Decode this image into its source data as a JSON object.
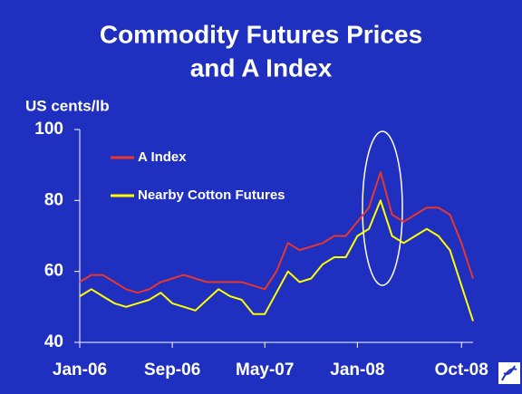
{
  "chart_data": {
    "type": "line",
    "title": "Commodity Futures Prices",
    "subtitle": "and A Index",
    "y_label": "US cents/lb",
    "x": [
      "2006-01",
      "2006-02",
      "2006-03",
      "2006-04",
      "2006-05",
      "2006-06",
      "2006-07",
      "2006-08",
      "2006-09",
      "2006-10",
      "2006-11",
      "2006-12",
      "2007-01",
      "2007-02",
      "2007-03",
      "2007-04",
      "2007-05",
      "2007-06",
      "2007-07",
      "2007-08",
      "2007-09",
      "2007-10",
      "2007-11",
      "2007-12",
      "2008-01",
      "2008-02",
      "2008-03",
      "2008-04",
      "2008-05",
      "2008-06",
      "2008-07",
      "2008-08",
      "2008-09",
      "2008-10",
      "2008-11"
    ],
    "series": [
      {
        "name": "A Index",
        "color": "#e8372b",
        "values": [
          57,
          59,
          59,
          57,
          55,
          54,
          55,
          57,
          58,
          59,
          58,
          57,
          57,
          57,
          57,
          56,
          55,
          60,
          68,
          66,
          67,
          68,
          70,
          70,
          74,
          78,
          88,
          76,
          74,
          76,
          78,
          78,
          76,
          68,
          58
        ]
      },
      {
        "name": "Nearby Cotton Futures",
        "color": "#ffff00",
        "values": [
          53,
          55,
          53,
          51,
          50,
          51,
          52,
          54,
          51,
          50,
          49,
          52,
          55,
          53,
          52,
          48,
          48,
          54,
          60,
          57,
          58,
          62,
          64,
          64,
          70,
          72,
          80,
          70,
          68,
          70,
          72,
          70,
          66,
          56,
          46
        ]
      }
    ],
    "xlim": [
      "2006-01",
      "2008-11"
    ],
    "xticks": [
      {
        "value": "2006-01",
        "label": "Jan-06"
      },
      {
        "value": "2006-09",
        "label": "Sep-06"
      },
      {
        "value": "2007-05",
        "label": "May-07"
      },
      {
        "value": "2008-01",
        "label": "Jan-08"
      },
      {
        "value": "2008-10",
        "label": "Oct-08"
      }
    ],
    "ylim": [
      40,
      100
    ],
    "yticks": [
      40,
      60,
      80,
      100
    ],
    "grid": false
  }
}
